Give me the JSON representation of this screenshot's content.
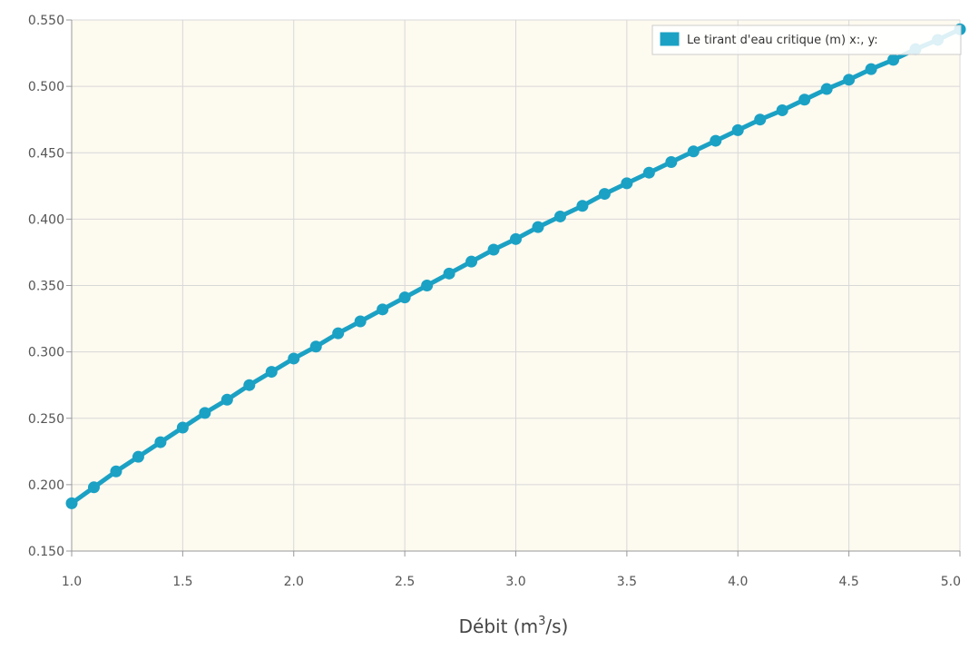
{
  "chart_data": {
    "type": "line",
    "xlabel": "Débit (m",
    "xlabel_sup": "3",
    "xlabel_suffix": "/s)",
    "ylabel": "",
    "xlim": [
      1.0,
      5.0
    ],
    "ylim": [
      0.15,
      0.55
    ],
    "x_ticks": [
      "1.0",
      "1.5",
      "2.0",
      "2.5",
      "3.0",
      "3.5",
      "4.0",
      "4.5",
      "5.0"
    ],
    "y_ticks": [
      "0.150",
      "0.200",
      "0.250",
      "0.300",
      "0.350",
      "0.400",
      "0.450",
      "0.500",
      "0.550"
    ],
    "grid": true,
    "legend_position": "top-right",
    "plot_background": "#fdfaf0",
    "series": [
      {
        "name": "Le tirant d'eau critique (m) x:, y:",
        "color": "#1ba1c4",
        "x": [
          1.0,
          1.1,
          1.2,
          1.3,
          1.4,
          1.5,
          1.6,
          1.7,
          1.8,
          1.9,
          2.0,
          2.1,
          2.2,
          2.3,
          2.4,
          2.5,
          2.6,
          2.7,
          2.8,
          2.9,
          3.0,
          3.1,
          3.2,
          3.3,
          3.4,
          3.5,
          3.6,
          3.7,
          3.8,
          3.9,
          4.0,
          4.1,
          4.2,
          4.3,
          4.4,
          4.5,
          4.6,
          4.7,
          4.8,
          4.9,
          5.0
        ],
        "y": [
          0.186,
          0.198,
          0.21,
          0.221,
          0.232,
          0.243,
          0.254,
          0.264,
          0.275,
          0.285,
          0.295,
          0.304,
          0.314,
          0.323,
          0.332,
          0.341,
          0.35,
          0.359,
          0.368,
          0.377,
          0.385,
          0.394,
          0.402,
          0.41,
          0.419,
          0.427,
          0.435,
          0.443,
          0.451,
          0.459,
          0.467,
          0.475,
          0.482,
          0.49,
          0.498,
          0.505,
          0.513,
          0.52,
          0.528,
          0.535,
          0.543
        ]
      }
    ]
  }
}
